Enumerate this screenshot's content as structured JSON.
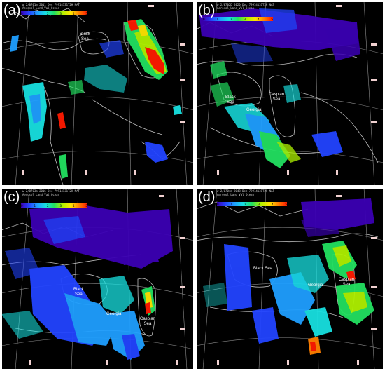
{
  "panels": [
    {
      "label": "(a)",
      "header1": "w  2/0701m 2011 Dec 79914131T2H  NAT",
      "header2": "Aerosol_Land_Val_Ocean",
      "seas": [
        {
          "name": "Black",
          "name2": "Sea"
        }
      ]
    },
    {
      "label": "(b)",
      "header1": "w  2/0702D 2020 Dec 79914131T2H  NAT",
      "header2": "Aerosol_Land_Val_Ocean",
      "seas": [
        {
          "name": "Caspian",
          "name2": "Sea"
        },
        {
          "name": "Black",
          "name2": "Sea"
        },
        {
          "name": "Georgia",
          "name2": ""
        }
      ]
    },
    {
      "label": "(c)",
      "header1": "w  2/0703m 2016 Dec 79914131T2H  NAT",
      "header2": "Aerosol_Land_Val_Ocean",
      "seas": [
        {
          "name": "Black",
          "name2": "Sea"
        },
        {
          "name": "Georgia",
          "name2": ""
        },
        {
          "name": "Caspian",
          "name2": "Sea"
        }
      ]
    },
    {
      "label": "(d)",
      "header1": "w  2/0704m 2048 Dec 79914131T2H  NAT",
      "header2": "Aerosol_Land_Val_Ocean",
      "seas": [
        {
          "name": "Black Sea",
          "name2": ""
        },
        {
          "name": "Caspian",
          "name2": "Sea"
        },
        {
          "name": "Georgia",
          "name2": ""
        }
      ]
    }
  ],
  "colorbar_ticks": [
    "0",
    "1",
    "2",
    "3",
    "4",
    "5"
  ],
  "colors": {
    "background": "#000000",
    "coastline": "#bfbfbf",
    "grid": "#8c8c8c",
    "panel_border": "#ffffff",
    "scale": [
      "#3b00b4",
      "#2244ff",
      "#1f9fff",
      "#18e0e0",
      "#22e060",
      "#aef000",
      "#ffe400",
      "#ff8000",
      "#ff1a00"
    ]
  }
}
